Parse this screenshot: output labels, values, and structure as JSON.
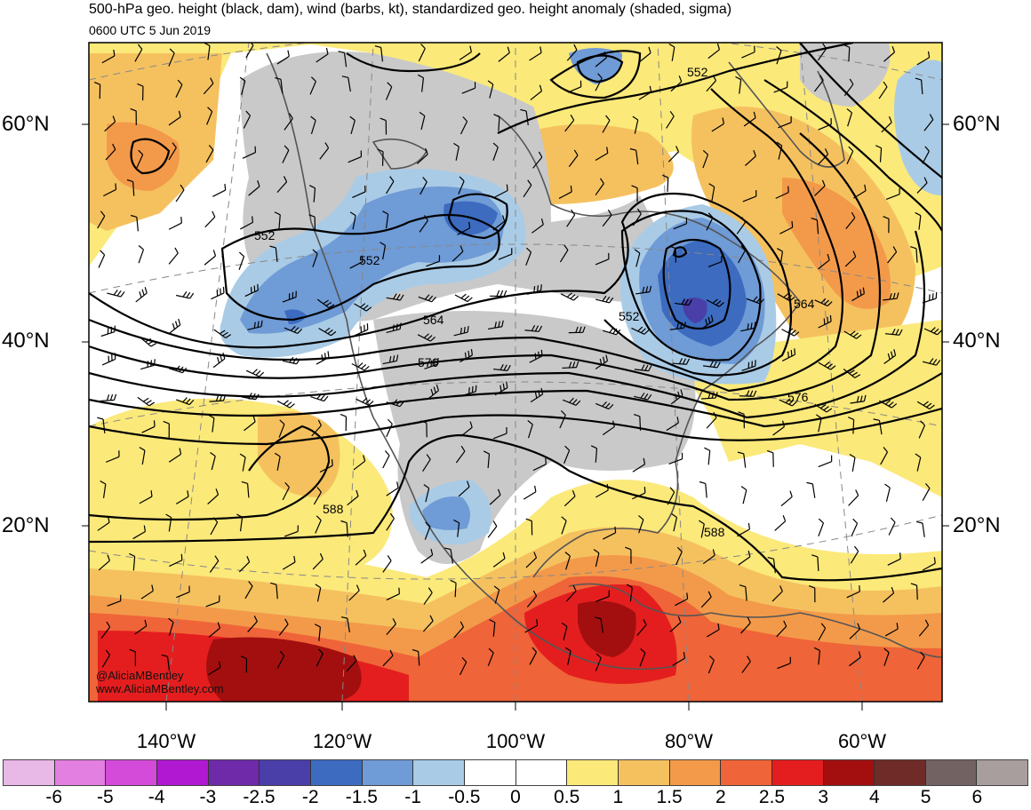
{
  "header": {
    "title": "500-hPa geo. height (black, dam), wind (barbs, kt), standardized geo. height anomaly (shaded, sigma)",
    "valid_time": "0600 UTC 5 Jun 2019"
  },
  "credits": {
    "handle": "@AliciaMBentley",
    "website": "www.AliciaMBentley.com"
  },
  "latitude_labels": [
    "60°N",
    "40°N",
    "20°N"
  ],
  "longitude_labels": [
    "140°W",
    "120°W",
    "100°W",
    "80°W",
    "60°W"
  ],
  "contour_labels": [
    "552",
    "552",
    "552",
    "552",
    "564",
    "564",
    "576",
    "576",
    "588",
    "588"
  ],
  "colorbar": {
    "labels": [
      "-6",
      "-5",
      "-4",
      "-3",
      "-2.5",
      "-2",
      "-1.5",
      "-1",
      "-0.5",
      "0",
      "0.5",
      "1",
      "1.5",
      "2",
      "2.5",
      "3",
      "4",
      "5",
      "6"
    ],
    "colors": [
      "#e8b8e6",
      "#e37fe0",
      "#d34bd8",
      "#b018d2",
      "#6e2aa8",
      "#4a3ea8",
      "#3c6bc0",
      "#6f9bd6",
      "#a9cbe6",
      "#ffffff",
      "#ffffff",
      "#fbe97a",
      "#f5c15f",
      "#f39a4a",
      "#ef6438",
      "#e41e1e",
      "#a30f0f",
      "#6e2b28",
      "#726262",
      "#a89e9e"
    ]
  },
  "map_colors": {
    "ocean_white": "#ffffff",
    "gray_neutral": "#c9c9c9",
    "light_yellow": "#fbe97a",
    "light_orange": "#f5c15f",
    "orange": "#f39a4a",
    "red_orange": "#ef6438",
    "red": "#e41e1e",
    "dark_red": "#a30f0f",
    "light_blue": "#a9cbe6",
    "blue": "#6f9bd6",
    "mid_blue": "#3c6bc0",
    "deep_blue": "#4a3ea8"
  }
}
